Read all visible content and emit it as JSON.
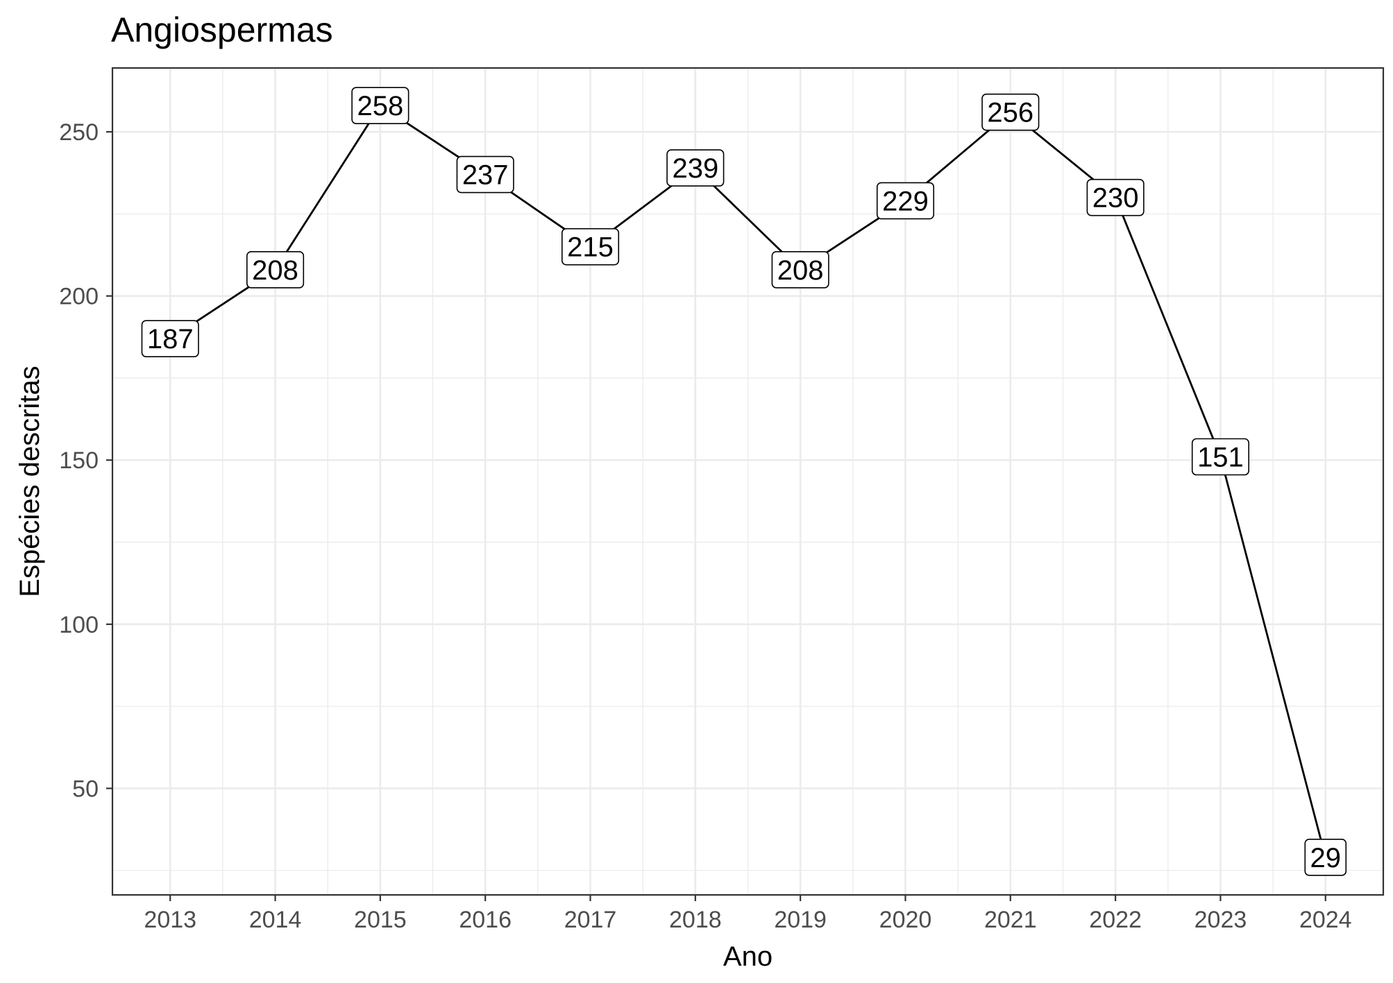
{
  "chart_data": {
    "type": "line",
    "title": "Angiospermas",
    "xlabel": "Ano",
    "ylabel": "Espécies descritas",
    "x": [
      2013,
      2014,
      2015,
      2016,
      2017,
      2018,
      2019,
      2020,
      2021,
      2022,
      2023,
      2024
    ],
    "x_tick_labels": [
      "2013",
      "2014",
      "2015",
      "2016",
      "2017",
      "2018",
      "2019",
      "2020",
      "2021",
      "2022",
      "2023",
      "2024"
    ],
    "series": [
      {
        "values": [
          187,
          208,
          258,
          237,
          215,
          239,
          208,
          229,
          256,
          230,
          151,
          29
        ],
        "labels": [
          "187",
          "208",
          "258",
          "237",
          "215",
          "239",
          "208",
          "229",
          "256",
          "230",
          "151",
          "29"
        ],
        "color": "#000000"
      }
    ],
    "y_ticks": [
      50,
      100,
      150,
      200,
      250
    ],
    "y_tick_labels": [
      "50",
      "100",
      "150",
      "200",
      "250"
    ],
    "xlim": [
      2012.45,
      2024.55
    ],
    "ylim": [
      17.55,
      269.45
    ],
    "grid": true,
    "legend": "none",
    "colors": {
      "background": "#ffffff",
      "grid": "#ebebeb",
      "panel_border": "#333333",
      "tick_text": "#4d4d4d",
      "text": "#000000"
    }
  }
}
